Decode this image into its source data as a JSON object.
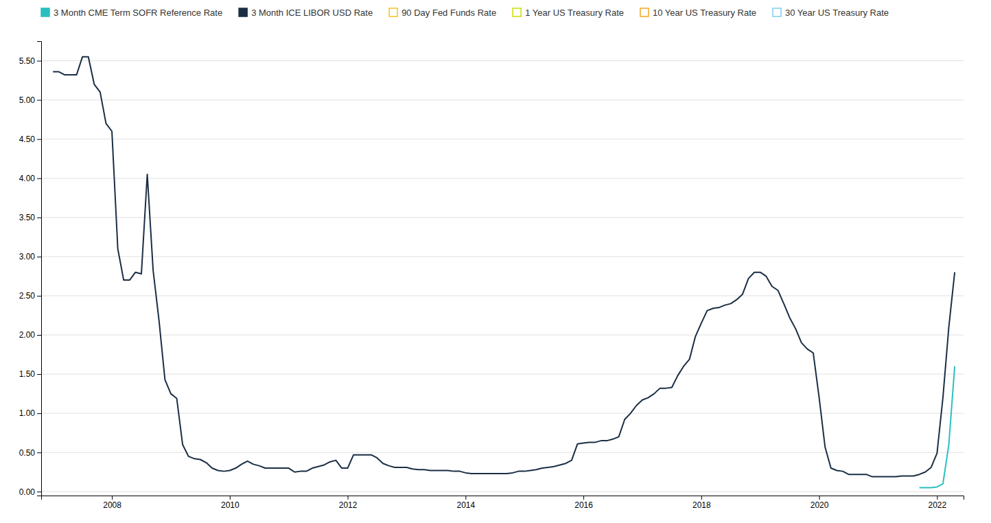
{
  "chart_data": {
    "type": "line",
    "legend": "upper left",
    "grid": true,
    "xlim": [
      2006.8,
      2022.45
    ],
    "xticks": [
      2008,
      2010,
      2012,
      2014,
      2016,
      2018,
      2020,
      2022
    ],
    "ylim": [
      -0.05,
      5.75
    ],
    "yticks": [
      {
        "value": 0.0,
        "label": "0.00"
      },
      {
        "value": 0.5,
        "label": "0.50"
      },
      {
        "value": 1.0,
        "label": "1.00"
      },
      {
        "value": 1.5,
        "label": "1.50"
      },
      {
        "value": 2.0,
        "label": "2.00"
      },
      {
        "value": 2.5,
        "label": "2.50"
      },
      {
        "value": 3.0,
        "label": "3.00"
      },
      {
        "value": 3.5,
        "label": "3.50"
      },
      {
        "value": 4.0,
        "label": "4.00"
      },
      {
        "value": 4.5,
        "label": "4.50"
      },
      {
        "value": 5.0,
        "label": "5.00"
      },
      {
        "value": 5.5,
        "label": "5.50"
      }
    ],
    "series": [
      {
        "name": "3 Month CME Term SOFR Reference Rate",
        "color": "#2abfbf",
        "x": [
          2021.7,
          2021.8,
          2021.9,
          2022.0,
          2022.1,
          2022.2,
          2022.3
        ],
        "values": [
          0.05,
          0.05,
          0.05,
          0.06,
          0.1,
          0.6,
          1.6
        ]
      },
      {
        "name": "3 Month ICE LIBOR USD Rate",
        "color": "#1a2e44",
        "x": [
          2007.0,
          2007.1,
          2007.2,
          2007.3,
          2007.4,
          2007.5,
          2007.6,
          2007.7,
          2007.8,
          2007.9,
          2008.0,
          2008.1,
          2008.2,
          2008.3,
          2008.4,
          2008.5,
          2008.6,
          2008.7,
          2008.8,
          2008.9,
          2009.0,
          2009.1,
          2009.2,
          2009.3,
          2009.4,
          2009.5,
          2009.6,
          2009.7,
          2009.8,
          2009.9,
          2010.0,
          2010.1,
          2010.2,
          2010.3,
          2010.4,
          2010.5,
          2010.6,
          2010.7,
          2010.8,
          2010.9,
          2011.0,
          2011.1,
          2011.2,
          2011.3,
          2011.4,
          2011.5,
          2011.6,
          2011.7,
          2011.8,
          2011.9,
          2012.0,
          2012.1,
          2012.2,
          2012.3,
          2012.4,
          2012.5,
          2012.6,
          2012.7,
          2012.8,
          2012.9,
          2013.0,
          2013.1,
          2013.2,
          2013.3,
          2013.4,
          2013.5,
          2013.6,
          2013.7,
          2013.8,
          2013.9,
          2014.0,
          2014.1,
          2014.2,
          2014.3,
          2014.4,
          2014.5,
          2014.6,
          2014.7,
          2014.8,
          2014.9,
          2015.0,
          2015.1,
          2015.2,
          2015.3,
          2015.4,
          2015.5,
          2015.6,
          2015.7,
          2015.8,
          2015.9,
          2016.0,
          2016.1,
          2016.2,
          2016.3,
          2016.4,
          2016.5,
          2016.6,
          2016.7,
          2016.8,
          2016.9,
          2017.0,
          2017.1,
          2017.2,
          2017.3,
          2017.4,
          2017.5,
          2017.6,
          2017.7,
          2017.8,
          2017.9,
          2018.0,
          2018.1,
          2018.2,
          2018.3,
          2018.4,
          2018.5,
          2018.6,
          2018.7,
          2018.8,
          2018.9,
          2019.0,
          2019.1,
          2019.2,
          2019.3,
          2019.4,
          2019.5,
          2019.6,
          2019.7,
          2019.8,
          2019.9,
          2020.0,
          2020.1,
          2020.2,
          2020.3,
          2020.4,
          2020.5,
          2020.6,
          2020.7,
          2020.8,
          2020.9,
          2021.0,
          2021.1,
          2021.2,
          2021.3,
          2021.4,
          2021.5,
          2021.6,
          2021.7,
          2021.8,
          2021.9,
          2022.0,
          2022.1,
          2022.2,
          2022.3
        ],
        "values": [
          5.36,
          5.36,
          5.32,
          5.32,
          5.32,
          5.55,
          5.55,
          5.2,
          5.1,
          4.7,
          4.6,
          3.1,
          2.7,
          2.7,
          2.8,
          2.78,
          4.05,
          2.82,
          2.18,
          1.43,
          1.25,
          1.19,
          0.6,
          0.45,
          0.42,
          0.41,
          0.37,
          0.3,
          0.27,
          0.26,
          0.27,
          0.3,
          0.35,
          0.39,
          0.35,
          0.33,
          0.3,
          0.3,
          0.3,
          0.3,
          0.3,
          0.25,
          0.26,
          0.26,
          0.3,
          0.32,
          0.34,
          0.38,
          0.4,
          0.3,
          0.3,
          0.47,
          0.47,
          0.47,
          0.47,
          0.43,
          0.36,
          0.33,
          0.31,
          0.31,
          0.31,
          0.29,
          0.28,
          0.28,
          0.27,
          0.27,
          0.27,
          0.27,
          0.26,
          0.26,
          0.24,
          0.23,
          0.23,
          0.23,
          0.23,
          0.23,
          0.23,
          0.23,
          0.24,
          0.26,
          0.26,
          0.27,
          0.28,
          0.3,
          0.31,
          0.32,
          0.34,
          0.36,
          0.4,
          0.61,
          0.62,
          0.63,
          0.63,
          0.65,
          0.65,
          0.67,
          0.7,
          0.92,
          1.0,
          1.1,
          1.17,
          1.2,
          1.25,
          1.32,
          1.32,
          1.33,
          1.48,
          1.6,
          1.69,
          1.98,
          2.15,
          2.31,
          2.34,
          2.35,
          2.38,
          2.4,
          2.45,
          2.52,
          2.72,
          2.8,
          2.8,
          2.75,
          2.62,
          2.57,
          2.4,
          2.22,
          2.08,
          1.9,
          1.82,
          1.77,
          1.2,
          0.57,
          0.3,
          0.27,
          0.26,
          0.22,
          0.22,
          0.22,
          0.22,
          0.19,
          0.19,
          0.19,
          0.19,
          0.19,
          0.2,
          0.2,
          0.2,
          0.22,
          0.25,
          0.31,
          0.49,
          1.2,
          2.1,
          2.8
        ]
      },
      {
        "name": "90 Day Fed Funds Rate",
        "color": "#f5c518",
        "x": [],
        "values": []
      },
      {
        "name": "1 Year US Treasury Rate",
        "color": "#ccdd00",
        "x": [],
        "values": []
      },
      {
        "name": "10 Year US Treasury Rate",
        "color": "#f5a623",
        "x": [],
        "values": []
      },
      {
        "name": "30 Year US Treasury Rate",
        "color": "#7ecfea",
        "x": [],
        "values": []
      }
    ]
  }
}
